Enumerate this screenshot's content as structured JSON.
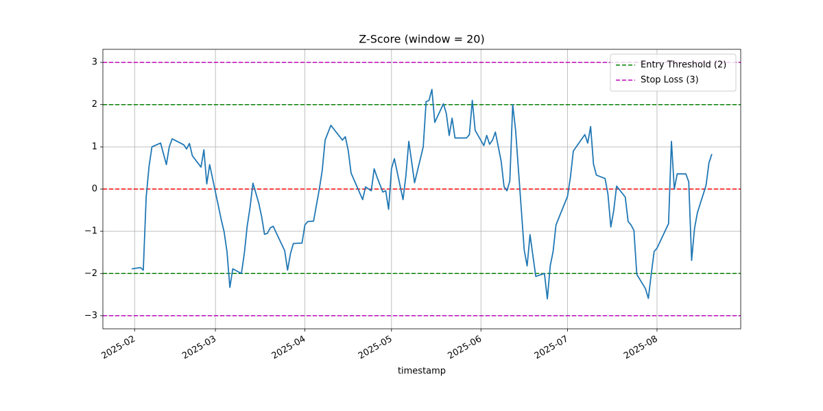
{
  "chart_data": {
    "type": "line",
    "title": "Z-Score (window = 20)",
    "x_label": "timestamp",
    "grid": true,
    "legend": "upper right",
    "xlim": [
      "2025-01-21",
      "2025-08-30"
    ],
    "xticks": [
      {
        "value": "2025-02-01",
        "label": "2025-02"
      },
      {
        "value": "2025-03-01",
        "label": "2025-03"
      },
      {
        "value": "2025-04-01",
        "label": "2025-04"
      },
      {
        "value": "2025-05-01",
        "label": "2025-05"
      },
      {
        "value": "2025-06-01",
        "label": "2025-06"
      },
      {
        "value": "2025-07-01",
        "label": "2025-07"
      },
      {
        "value": "2025-08-01",
        "label": "2025-08"
      }
    ],
    "ylim": [
      -3.31,
      3.31
    ],
    "yticks": [
      {
        "value": -3,
        "label": "−3"
      },
      {
        "value": -2,
        "label": "−2"
      },
      {
        "value": -1,
        "label": "−1"
      },
      0,
      1,
      2,
      3
    ],
    "reference_lines": [
      {
        "name": "Entry Threshold (2)",
        "color": "#008000",
        "values": [
          2,
          -2
        ]
      },
      {
        "name": "Stop Loss (3)",
        "color": "#bf00bf",
        "values": [
          3,
          -3
        ]
      },
      {
        "color": "#ff0000",
        "values": [
          0
        ]
      }
    ],
    "series": [
      {
        "color": "#1f77b4",
        "x": [
          "2025-01-31",
          "2025-02-03",
          "2025-02-04",
          "2025-02-05",
          "2025-02-06",
          "2025-02-07",
          "2025-02-10",
          "2025-02-12",
          "2025-02-13",
          "2025-02-14",
          "2025-02-18",
          "2025-02-19",
          "2025-02-20",
          "2025-02-21",
          "2025-02-24",
          "2025-02-25",
          "2025-02-26",
          "2025-02-27",
          "2025-03-03",
          "2025-03-04",
          "2025-03-05",
          "2025-03-06",
          "2025-03-07",
          "2025-03-10",
          "2025-03-11",
          "2025-03-12",
          "2025-03-13",
          "2025-03-14",
          "2025-03-16",
          "2025-03-17",
          "2025-03-18",
          "2025-03-19",
          "2025-03-20",
          "2025-03-21",
          "2025-03-25",
          "2025-03-26",
          "2025-03-27",
          "2025-03-28",
          "2025-03-31",
          "2025-04-01",
          "2025-04-02",
          "2025-04-04",
          "2025-04-06",
          "2025-04-07",
          "2025-04-08",
          "2025-04-10",
          "2025-04-14",
          "2025-04-15",
          "2025-04-16",
          "2025-04-17",
          "2025-04-21",
          "2025-04-22",
          "2025-04-24",
          "2025-04-25",
          "2025-04-26",
          "2025-04-28",
          "2025-04-29",
          "2025-04-30",
          "2025-05-01",
          "2025-05-02",
          "2025-05-05",
          "2025-05-06",
          "2025-05-07",
          "2025-05-09",
          "2025-05-12",
          "2025-05-13",
          "2025-05-14",
          "2025-05-15",
          "2025-05-16",
          "2025-05-19",
          "2025-05-20",
          "2025-05-21",
          "2025-05-22",
          "2025-05-23",
          "2025-05-27",
          "2025-05-28",
          "2025-05-29",
          "2025-05-30",
          "2025-06-02",
          "2025-06-03",
          "2025-06-04",
          "2025-06-05",
          "2025-06-06",
          "2025-06-08",
          "2025-06-09",
          "2025-06-10",
          "2025-06-11",
          "2025-06-12",
          "2025-06-13",
          "2025-06-16",
          "2025-06-17",
          "2025-06-18",
          "2025-06-20",
          "2025-06-23",
          "2025-06-24",
          "2025-06-25",
          "2025-06-26",
          "2025-06-27",
          "2025-07-01",
          "2025-07-02",
          "2025-07-03",
          "2025-07-07",
          "2025-07-08",
          "2025-07-09",
          "2025-07-10",
          "2025-07-11",
          "2025-07-14",
          "2025-07-15",
          "2025-07-16",
          "2025-07-17",
          "2025-07-18",
          "2025-07-21",
          "2025-07-22",
          "2025-07-23",
          "2025-07-24",
          "2025-07-25",
          "2025-07-28",
          "2025-07-29",
          "2025-07-30",
          "2025-07-31",
          "2025-08-01",
          "2025-08-05",
          "2025-08-06",
          "2025-08-07",
          "2025-08-08",
          "2025-08-11",
          "2025-08-12",
          "2025-08-13",
          "2025-08-14",
          "2025-08-15",
          "2025-08-18",
          "2025-08-19",
          "2025-08-20"
        ],
        "values": [
          -1.89,
          -1.86,
          -1.92,
          -0.2,
          0.54,
          1.0,
          1.09,
          0.58,
          1.0,
          1.19,
          1.05,
          0.95,
          1.08,
          0.79,
          0.52,
          0.93,
          0.12,
          0.58,
          -0.72,
          -1.01,
          -1.48,
          -2.33,
          -1.89,
          -2.0,
          -1.53,
          -0.88,
          -0.43,
          0.14,
          -0.33,
          -0.65,
          -1.07,
          -1.05,
          -0.92,
          -0.88,
          -1.46,
          -1.92,
          -1.53,
          -1.29,
          -1.28,
          -0.85,
          -0.77,
          -0.76,
          0.0,
          0.44,
          1.16,
          1.51,
          1.16,
          1.24,
          0.92,
          0.38,
          -0.25,
          0.05,
          -0.04,
          0.48,
          0.28,
          -0.07,
          -0.04,
          -0.48,
          0.48,
          0.72,
          -0.25,
          0.32,
          1.13,
          0.15,
          1.0,
          2.07,
          2.1,
          2.36,
          1.58,
          2.02,
          1.79,
          1.27,
          1.68,
          1.21,
          1.21,
          1.29,
          2.1,
          1.39,
          1.03,
          1.27,
          1.06,
          1.16,
          1.35,
          0.66,
          0.06,
          -0.04,
          0.19,
          2.0,
          1.4,
          -1.45,
          -1.82,
          -1.08,
          -2.07,
          -2.0,
          -2.6,
          -1.82,
          -1.48,
          -0.85,
          -0.17,
          0.28,
          0.9,
          1.29,
          1.09,
          1.48,
          0.59,
          0.33,
          0.25,
          -0.12,
          -0.9,
          -0.51,
          0.07,
          -0.19,
          -0.77,
          -0.85,
          -0.98,
          -2.02,
          -2.36,
          -2.59,
          -2.02,
          -1.48,
          -1.4,
          -0.82,
          1.13,
          0.0,
          0.36,
          0.36,
          0.17,
          -1.69,
          -0.93,
          -0.56,
          0.09,
          0.62,
          0.83
        ]
      }
    ]
  }
}
